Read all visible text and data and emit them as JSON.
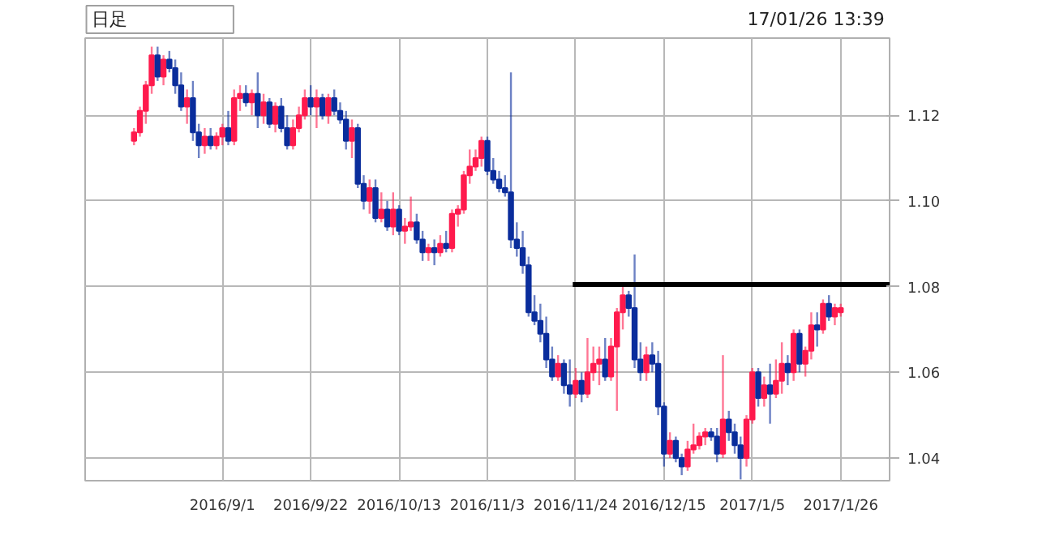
{
  "chart_data": {
    "type": "candlestick",
    "annotations": [
      "日足",
      "17/01/26 13:39"
    ],
    "categories": [
      null,
      null,
      null,
      null,
      null,
      null,
      null,
      null,
      null,
      null,
      null,
      null,
      null,
      null,
      null,
      "2016/9/1",
      null,
      null,
      null,
      null,
      null,
      null,
      null,
      null,
      null,
      null,
      null,
      null,
      null,
      null,
      "2016/9/22",
      null,
      null,
      null,
      null,
      null,
      null,
      null,
      null,
      null,
      null,
      null,
      null,
      null,
      null,
      "2016/10/13",
      null,
      null,
      null,
      null,
      null,
      null,
      null,
      null,
      null,
      null,
      null,
      null,
      null,
      null,
      "2016/11/3",
      null,
      null,
      null,
      null,
      null,
      null,
      null,
      null,
      null,
      null,
      null,
      null,
      null,
      null,
      "2016/11/24",
      null,
      null,
      null,
      null,
      null,
      null,
      null,
      null,
      null,
      null,
      null,
      null,
      null,
      null,
      "2016/12/15",
      null,
      null,
      null,
      null,
      null,
      null,
      null,
      null,
      null,
      null,
      null,
      null,
      null,
      null,
      "2017/1/5",
      null,
      null,
      null,
      null,
      null,
      null,
      null,
      null,
      null,
      null,
      null,
      null,
      null,
      null,
      "2017/1/26"
    ],
    "ohlc": [
      [
        1.114,
        1.117,
        1.113,
        1.116
      ],
      [
        1.116,
        1.122,
        1.115,
        1.121
      ],
      [
        1.121,
        1.128,
        1.118,
        1.127
      ],
      [
        1.127,
        1.136,
        1.125,
        1.134
      ],
      [
        1.134,
        1.136,
        1.128,
        1.129
      ],
      [
        1.129,
        1.134,
        1.127,
        1.133
      ],
      [
        1.133,
        1.135,
        1.13,
        1.131
      ],
      [
        1.131,
        1.133,
        1.125,
        1.127
      ],
      [
        1.127,
        1.13,
        1.121,
        1.122
      ],
      [
        1.122,
        1.126,
        1.118,
        1.124
      ],
      [
        1.124,
        1.128,
        1.114,
        1.116
      ],
      [
        1.116,
        1.118,
        1.11,
        1.113
      ],
      [
        1.113,
        1.117,
        1.111,
        1.115
      ],
      [
        1.115,
        1.117,
        1.112,
        1.113
      ],
      [
        1.113,
        1.116,
        1.112,
        1.115
      ],
      [
        1.115,
        1.118,
        1.113,
        1.117
      ],
      [
        1.117,
        1.121,
        1.113,
        1.114
      ],
      [
        1.114,
        1.126,
        1.113,
        1.124
      ],
      [
        1.124,
        1.127,
        1.121,
        1.125
      ],
      [
        1.125,
        1.127,
        1.122,
        1.123
      ],
      [
        1.123,
        1.126,
        1.12,
        1.125
      ],
      [
        1.125,
        1.13,
        1.117,
        1.12
      ],
      [
        1.12,
        1.125,
        1.118,
        1.123
      ],
      [
        1.123,
        1.124,
        1.117,
        1.118
      ],
      [
        1.118,
        1.123,
        1.116,
        1.122
      ],
      [
        1.122,
        1.124,
        1.116,
        1.117
      ],
      [
        1.117,
        1.12,
        1.112,
        1.113
      ],
      [
        1.113,
        1.119,
        1.112,
        1.117
      ],
      [
        1.117,
        1.122,
        1.116,
        1.12
      ],
      [
        1.12,
        1.126,
        1.119,
        1.124
      ],
      [
        1.124,
        1.127,
        1.12,
        1.122
      ],
      [
        1.122,
        1.126,
        1.117,
        1.124
      ],
      [
        1.124,
        1.125,
        1.119,
        1.12
      ],
      [
        1.12,
        1.125,
        1.118,
        1.124
      ],
      [
        1.124,
        1.126,
        1.12,
        1.121
      ],
      [
        1.121,
        1.123,
        1.118,
        1.119
      ],
      [
        1.119,
        1.121,
        1.112,
        1.114
      ],
      [
        1.114,
        1.119,
        1.11,
        1.117
      ],
      [
        1.117,
        1.118,
        1.103,
        1.104
      ],
      [
        1.104,
        1.106,
        1.098,
        1.1
      ],
      [
        1.1,
        1.105,
        1.097,
        1.103
      ],
      [
        1.103,
        1.105,
        1.095,
        1.096
      ],
      [
        1.096,
        1.102,
        1.095,
        1.098
      ],
      [
        1.098,
        1.1,
        1.093,
        1.094
      ],
      [
        1.094,
        1.102,
        1.092,
        1.098
      ],
      [
        1.098,
        1.099,
        1.092,
        1.093
      ],
      [
        1.093,
        1.096,
        1.09,
        1.094
      ],
      [
        1.094,
        1.101,
        1.093,
        1.095
      ],
      [
        1.095,
        1.097,
        1.09,
        1.091
      ],
      [
        1.091,
        1.093,
        1.086,
        1.088
      ],
      [
        1.088,
        1.09,
        1.086,
        1.089
      ],
      [
        1.089,
        1.091,
        1.085,
        1.088
      ],
      [
        1.088,
        1.092,
        1.087,
        1.09
      ],
      [
        1.09,
        1.093,
        1.088,
        1.089
      ],
      [
        1.089,
        1.098,
        1.088,
        1.097
      ],
      [
        1.097,
        1.099,
        1.094,
        1.098
      ],
      [
        1.098,
        1.107,
        1.097,
        1.106
      ],
      [
        1.106,
        1.112,
        1.104,
        1.108
      ],
      [
        1.108,
        1.112,
        1.107,
        1.11
      ],
      [
        1.11,
        1.115,
        1.108,
        1.114
      ],
      [
        1.114,
        1.115,
        1.106,
        1.107
      ],
      [
        1.107,
        1.11,
        1.104,
        1.105
      ],
      [
        1.105,
        1.107,
        1.102,
        1.103
      ],
      [
        1.103,
        1.106,
        1.101,
        1.102
      ],
      [
        1.102,
        1.13,
        1.089,
        1.091
      ],
      [
        1.091,
        1.095,
        1.087,
        1.089
      ],
      [
        1.089,
        1.093,
        1.083,
        1.085
      ],
      [
        1.085,
        1.087,
        1.073,
        1.074
      ],
      [
        1.074,
        1.078,
        1.071,
        1.072
      ],
      [
        1.072,
        1.076,
        1.067,
        1.069
      ],
      [
        1.069,
        1.073,
        1.061,
        1.063
      ],
      [
        1.063,
        1.066,
        1.058,
        1.059
      ],
      [
        1.059,
        1.064,
        1.058,
        1.062
      ],
      [
        1.062,
        1.063,
        1.055,
        1.057
      ],
      [
        1.057,
        1.063,
        1.052,
        1.055
      ],
      [
        1.055,
        1.061,
        1.054,
        1.058
      ],
      [
        1.058,
        1.06,
        1.053,
        1.055
      ],
      [
        1.055,
        1.068,
        1.054,
        1.06
      ],
      [
        1.06,
        1.066,
        1.058,
        1.062
      ],
      [
        1.062,
        1.066,
        1.057,
        1.063
      ],
      [
        1.063,
        1.068,
        1.058,
        1.059
      ],
      [
        1.059,
        1.068,
        1.058,
        1.066
      ],
      [
        1.066,
        1.075,
        1.051,
        1.074
      ],
      [
        1.074,
        1.08,
        1.07,
        1.078
      ],
      [
        1.078,
        1.079,
        1.073,
        1.075
      ],
      [
        1.075,
        1.0875,
        1.061,
        1.063
      ],
      [
        1.063,
        1.067,
        1.058,
        1.06
      ],
      [
        1.06,
        1.066,
        1.058,
        1.064
      ],
      [
        1.064,
        1.067,
        1.06,
        1.062
      ],
      [
        1.062,
        1.065,
        1.05,
        1.052
      ],
      [
        1.052,
        1.053,
        1.038,
        1.041
      ],
      [
        1.041,
        1.046,
        1.04,
        1.044
      ],
      [
        1.044,
        1.045,
        1.039,
        1.04
      ],
      [
        1.04,
        1.041,
        1.036,
        1.038
      ],
      [
        1.038,
        1.044,
        1.037,
        1.042
      ],
      [
        1.042,
        1.048,
        1.041,
        1.043
      ],
      [
        1.043,
        1.046,
        1.042,
        1.045
      ],
      [
        1.045,
        1.047,
        1.043,
        1.046
      ],
      [
        1.046,
        1.047,
        1.044,
        1.045
      ],
      [
        1.045,
        1.047,
        1.039,
        1.041
      ],
      [
        1.041,
        1.064,
        1.04,
        1.049
      ],
      [
        1.049,
        1.051,
        1.044,
        1.046
      ],
      [
        1.046,
        1.048,
        1.041,
        1.043
      ],
      [
        1.043,
        1.045,
        1.035,
        1.04
      ],
      [
        1.04,
        1.05,
        1.038,
        1.049
      ],
      [
        1.049,
        1.061,
        1.048,
        1.06
      ],
      [
        1.06,
        1.061,
        1.052,
        1.054
      ],
      [
        1.054,
        1.059,
        1.052,
        1.057
      ],
      [
        1.057,
        1.062,
        1.048,
        1.055
      ],
      [
        1.055,
        1.063,
        1.054,
        1.058
      ],
      [
        1.058,
        1.067,
        1.055,
        1.062
      ],
      [
        1.062,
        1.064,
        1.057,
        1.06
      ],
      [
        1.06,
        1.07,
        1.058,
        1.069
      ],
      [
        1.069,
        1.07,
        1.06,
        1.062
      ],
      [
        1.062,
        1.066,
        1.059,
        1.065
      ],
      [
        1.065,
        1.074,
        1.063,
        1.071
      ],
      [
        1.071,
        1.074,
        1.066,
        1.07
      ],
      [
        1.07,
        1.077,
        1.069,
        1.076
      ],
      [
        1.076,
        1.078,
        1.072,
        1.073
      ],
      [
        1.073,
        1.076,
        1.071,
        1.075
      ],
      [
        1.074,
        1.076,
        1.073,
        1.075
      ]
    ],
    "colors": [
      "#ff1a4d",
      "#ff1a4d",
      "#ff1a4d",
      "#ff1a4d",
      "#0a2d9c",
      "#ff1a4d",
      "#0a2d9c",
      "#0a2d9c",
      "#0a2d9c",
      "#ff1a4d",
      "#0a2d9c",
      "#0a2d9c",
      "#ff1a4d",
      "#0a2d9c",
      "#ff1a4d",
      "#ff1a4d",
      "#0a2d9c",
      "#ff1a4d",
      "#ff1a4d",
      "#0a2d9c",
      "#ff1a4d",
      "#0a2d9c",
      "#ff1a4d",
      "#0a2d9c",
      "#ff1a4d",
      "#0a2d9c",
      "#0a2d9c",
      "#ff1a4d",
      "#ff1a4d",
      "#ff1a4d",
      "#0a2d9c",
      "#ff1a4d",
      "#0a2d9c",
      "#ff1a4d",
      "#0a2d9c",
      "#0a2d9c",
      "#0a2d9c",
      "#ff1a4d",
      "#0a2d9c",
      "#0a2d9c",
      "#ff1a4d",
      "#0a2d9c",
      "#ff1a4d",
      "#0a2d9c",
      "#ff1a4d",
      "#0a2d9c",
      "#ff1a4d",
      "#ff1a4d",
      "#0a2d9c",
      "#0a2d9c",
      "#ff1a4d",
      "#0a2d9c",
      "#ff1a4d",
      "#0a2d9c",
      "#ff1a4d",
      "#ff1a4d",
      "#ff1a4d",
      "#ff1a4d",
      "#ff1a4d",
      "#ff1a4d",
      "#0a2d9c",
      "#0a2d9c",
      "#0a2d9c",
      "#0a2d9c",
      "#0a2d9c",
      "#0a2d9c",
      "#0a2d9c",
      "#0a2d9c",
      "#0a2d9c",
      "#0a2d9c",
      "#0a2d9c",
      "#0a2d9c",
      "#ff1a4d",
      "#0a2d9c",
      "#0a2d9c",
      "#ff1a4d",
      "#0a2d9c",
      "#ff1a4d",
      "#ff1a4d",
      "#ff1a4d",
      "#0a2d9c",
      "#ff1a4d",
      "#ff1a4d",
      "#ff1a4d",
      "#0a2d9c",
      "#0a2d9c",
      "#0a2d9c",
      "#ff1a4d",
      "#0a2d9c",
      "#0a2d9c",
      "#0a2d9c",
      "#ff1a4d",
      "#0a2d9c",
      "#0a2d9c",
      "#ff1a4d",
      "#ff1a4d",
      "#ff1a4d",
      "#ff1a4d",
      "#0a2d9c",
      "#0a2d9c",
      "#ff1a4d",
      "#0a2d9c",
      "#0a2d9c",
      "#0a2d9c",
      "#ff1a4d",
      "#ff1a4d",
      "#0a2d9c",
      "#ff1a4d",
      "#0a2d9c",
      "#ff1a4d",
      "#ff1a4d",
      "#0a2d9c",
      "#ff1a4d",
      "#0a2d9c",
      "#ff1a4d",
      "#ff1a4d",
      "#0a2d9c",
      "#ff1a4d",
      "#0a2d9c",
      "#ff1a4d",
      "#ff1a4d"
    ],
    "series": [
      {
        "type": "line",
        "color": "#000000",
        "values": [
          null,
          null,
          null,
          null,
          null,
          null,
          null,
          null,
          null,
          null,
          null,
          null,
          null,
          null,
          null,
          null,
          null,
          null,
          null,
          null,
          null,
          null,
          null,
          null,
          null,
          null,
          null,
          null,
          null,
          null,
          null,
          null,
          null,
          null,
          null,
          null,
          null,
          null,
          null,
          null,
          null,
          null,
          null,
          null,
          null,
          null,
          null,
          null,
          null,
          null,
          null,
          null,
          null,
          null,
          null,
          null,
          null,
          null,
          null,
          null,
          null,
          null,
          null,
          null,
          null,
          null,
          null,
          null,
          null,
          null,
          null,
          null,
          null,
          null,
          null,
          1.0805,
          1.0805,
          1.0805,
          1.0805,
          1.0805,
          1.0805,
          1.0805,
          1.0805,
          1.0805,
          1.0805,
          1.0805,
          1.0805,
          1.0805,
          1.0805,
          1.0805,
          1.0805,
          1.0805,
          1.0805,
          1.0805,
          1.0805,
          1.0805,
          1.0805,
          1.0805,
          1.0805,
          1.0805,
          1.0805,
          1.0805,
          1.0805,
          1.0805,
          1.0805,
          1.0805,
          1.0805,
          1.0805,
          1.0805,
          1.0805,
          1.0805,
          1.0805,
          1.0805,
          1.0805,
          1.0805,
          1.0805,
          1.0805,
          1.0805,
          1.0805,
          1.0805,
          1.0805
        ]
      }
    ],
    "ylim": [
      1.0347,
      1.138
    ],
    "yticks": [
      1.04,
      1.06,
      1.08,
      {
        "value": 1.1,
        "label": "1.10"
      },
      1.12
    ],
    "grid": true
  }
}
